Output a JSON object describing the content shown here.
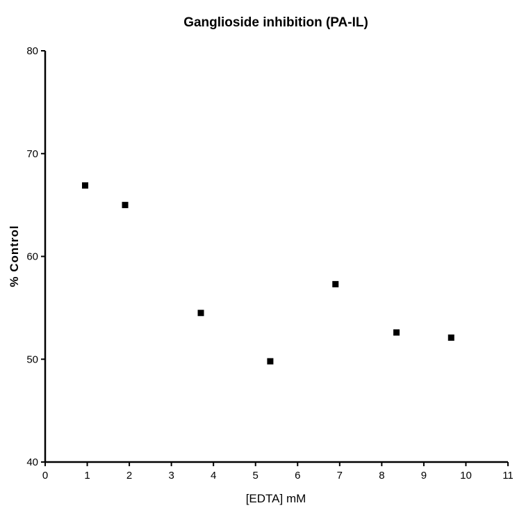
{
  "chart_data": {
    "type": "scatter",
    "title": "Ganglioside inhibition (PA-IL)",
    "xlabel": "[EDTA] mM",
    "ylabel": "% Control",
    "xlim": [
      0,
      11
    ],
    "ylim": [
      40,
      80
    ],
    "x_ticks": [
      0,
      1,
      2,
      3,
      4,
      5,
      6,
      7,
      8,
      9,
      10,
      11
    ],
    "y_ticks": [
      40,
      50,
      60,
      70,
      80
    ],
    "grid": false,
    "legend": "none",
    "marker": "square",
    "color": "#000000",
    "series": [
      {
        "x": [
          0.95,
          1.9,
          3.7,
          5.35,
          6.9,
          8.35,
          9.65
        ],
        "y": [
          66.9,
          65.0,
          54.5,
          49.8,
          57.3,
          52.6,
          52.1
        ]
      }
    ]
  }
}
